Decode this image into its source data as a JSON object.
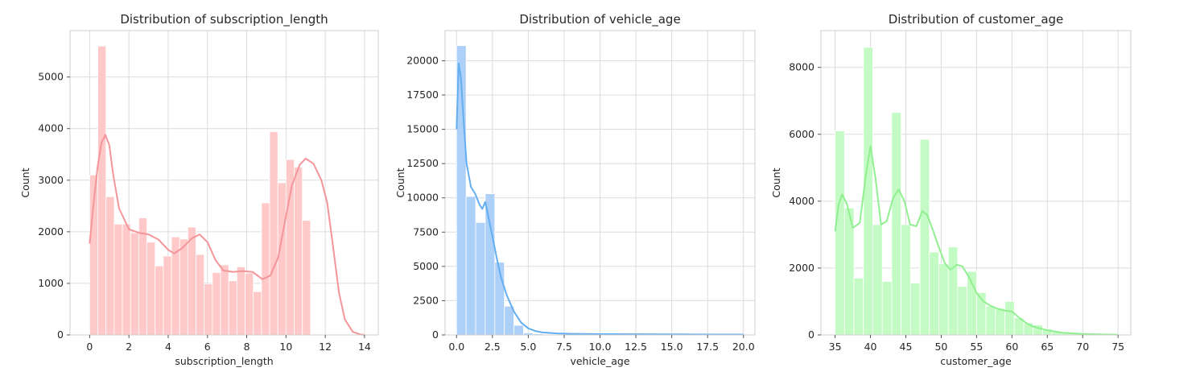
{
  "chart_data": [
    {
      "type": "bar",
      "title": "Distribution of subscription_length",
      "xlabel": "subscription_length",
      "ylabel": "Count",
      "xlim": [
        -1,
        14.7
      ],
      "ylim": [
        0,
        5900
      ],
      "xticks": [
        0,
        2,
        4,
        6,
        8,
        10,
        12,
        14
      ],
      "yticks": [
        0,
        1000,
        2000,
        3000,
        4000,
        5000
      ],
      "grid": true,
      "colors": {
        "bar": "#ffc9c9",
        "kde": "#f4959a"
      },
      "bin_start": 0,
      "bin_width": 0.4167,
      "values": [
        3100,
        5600,
        2680,
        2150,
        2150,
        1980,
        2270,
        1800,
        1340,
        1530,
        1900,
        1860,
        2090,
        1560,
        990,
        1210,
        1360,
        1050,
        1320,
        1200,
        840,
        2560,
        3940,
        2950,
        3400,
        3250,
        2220
      ],
      "kde_x": [
        0,
        0.2,
        0.4,
        0.6,
        0.8,
        1.0,
        1.2,
        1.5,
        2.0,
        2.5,
        3.0,
        3.5,
        4.0,
        4.3,
        4.7,
        5.2,
        5.6,
        6.0,
        6.4,
        6.8,
        7.3,
        7.8,
        8.3,
        8.8,
        9.2,
        9.6,
        10.0,
        10.3,
        10.7,
        11.0,
        11.4,
        11.8,
        12.1,
        12.4,
        12.7,
        13.0,
        13.4,
        13.8,
        14.0
      ],
      "kde_y": [
        1770,
        2550,
        3250,
        3720,
        3880,
        3680,
        3100,
        2450,
        2050,
        1980,
        1950,
        1850,
        1650,
        1580,
        1680,
        1870,
        1950,
        1800,
        1460,
        1250,
        1220,
        1240,
        1220,
        1080,
        1150,
        1500,
        2300,
        2900,
        3300,
        3420,
        3320,
        3000,
        2560,
        1700,
        820,
        300,
        60,
        10,
        0
      ]
    },
    {
      "type": "bar",
      "title": "Distribution of vehicle_age",
      "xlabel": "vehicle_age",
      "ylabel": "Count",
      "xlim": [
        -0.8,
        20.8
      ],
      "ylim": [
        0,
        22200
      ],
      "xticks": [
        0.0,
        2.5,
        5.0,
        7.5,
        10.0,
        12.5,
        15.0,
        17.5,
        20.0
      ],
      "yticks": [
        0,
        2500,
        5000,
        7500,
        10000,
        12500,
        15000,
        17500,
        20000
      ],
      "xtick_labels": [
        "0.0",
        "2.5",
        "5.0",
        "7.5",
        "10.0",
        "12.5",
        "15.0",
        "17.5",
        "20.0"
      ],
      "grid": true,
      "colors": {
        "bar": "#acd0f7",
        "kde": "#63aef0"
      },
      "bin_start": 0,
      "bin_width": 0.6667,
      "values": [
        21100,
        10100,
        8200,
        10300,
        5300,
        2100,
        700,
        150,
        80,
        50,
        30,
        20,
        20,
        15,
        10,
        10,
        10,
        10,
        10,
        10,
        10,
        10,
        10,
        10,
        10,
        10,
        10,
        10,
        10,
        10
      ],
      "kde_x": [
        0,
        0.15,
        0.3,
        0.5,
        0.7,
        1.0,
        1.3,
        1.6,
        1.8,
        2.0,
        2.2,
        2.5,
        2.8,
        3.1,
        3.5,
        4.0,
        4.5,
        5.0,
        5.5,
        6.0,
        7.0,
        8.0,
        10.0,
        12.0,
        15.0,
        18.0,
        20.0
      ],
      "kde_y": [
        15000,
        19800,
        18800,
        15500,
        12500,
        10800,
        10300,
        9500,
        9200,
        9700,
        8700,
        7200,
        5600,
        4200,
        2900,
        1700,
        900,
        480,
        280,
        180,
        110,
        80,
        60,
        50,
        40,
        30,
        30
      ]
    },
    {
      "type": "bar",
      "title": "Distribution of customer_age",
      "xlabel": "customer_age",
      "ylabel": "Count",
      "xlim": [
        33,
        76.8
      ],
      "ylim": [
        0,
        9100
      ],
      "xticks": [
        35,
        40,
        45,
        50,
        55,
        60,
        65,
        70,
        75
      ],
      "yticks": [
        0,
        2000,
        4000,
        6000,
        8000
      ],
      "grid": true,
      "colors": {
        "bar": "#c4fbc4",
        "kde": "#91ef91"
      },
      "bin_start": 35,
      "bin_width": 1.3333,
      "values": [
        6100,
        3800,
        1700,
        8600,
        3300,
        1600,
        6650,
        3300,
        1550,
        5850,
        2480,
        2130,
        2630,
        1450,
        1900,
        1270,
        860,
        800,
        1000,
        510,
        360,
        300,
        180,
        120,
        80,
        60,
        40,
        30,
        20,
        15
      ],
      "kde_x": [
        35,
        35.5,
        36,
        36.7,
        37.5,
        38.5,
        39.3,
        40,
        40.7,
        41.5,
        42.3,
        43.2,
        44,
        44.8,
        45.6,
        46.5,
        47.3,
        48,
        48.8,
        49.7,
        50.5,
        51.3,
        52.2,
        53,
        54,
        55,
        56,
        57,
        58,
        59,
        60,
        61,
        62,
        63,
        65,
        67,
        70,
        73,
        75
      ],
      "kde_y": [
        3100,
        3900,
        4200,
        3900,
        3200,
        3350,
        4700,
        5650,
        4700,
        3300,
        3400,
        4100,
        4350,
        4000,
        3300,
        3250,
        3700,
        3600,
        3150,
        2600,
        2150,
        1950,
        2100,
        2050,
        1700,
        1250,
        1000,
        870,
        780,
        730,
        700,
        520,
        360,
        250,
        140,
        70,
        30,
        15,
        10
      ]
    }
  ]
}
